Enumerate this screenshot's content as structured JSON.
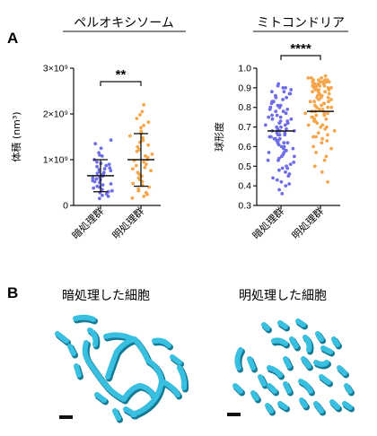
{
  "figure": {
    "panel_a_label": "A",
    "panel_b_label": "B",
    "colors": {
      "dark": "#6f6ee6",
      "light": "#f5a54a",
      "mito": "#39bfe0",
      "mito_shadow": "#157a95"
    },
    "dark_cell_title": "暗処理した細胞",
    "light_cell_title": "明処理した細胞"
  },
  "chart_data": [
    {
      "type": "scatter",
      "title": "ペルオキシソーム",
      "ylabel": "体積 (nm³)",
      "y_tick_labels": [
        "0",
        "1×10⁹",
        "2×10⁹",
        "3×10⁹"
      ],
      "y_ticks": [
        0,
        1000000000,
        2000000000,
        3000000000
      ],
      "ylim": [
        0,
        3000000000
      ],
      "categories": [
        "暗処理群",
        "明処理群"
      ],
      "significance": "**",
      "series": [
        {
          "color": "#6f6ee6",
          "mean": 650000000,
          "sd_low": 300000000,
          "sd_high": 1000000000,
          "values": [
            1430000000,
            1350000000,
            1250000000,
            1150000000,
            1100000000,
            1080000000,
            1000000000,
            950000000,
            920000000,
            900000000,
            870000000,
            850000000,
            820000000,
            800000000,
            780000000,
            760000000,
            740000000,
            720000000,
            700000000,
            680000000,
            660000000,
            640000000,
            620000000,
            600000000,
            580000000,
            560000000,
            540000000,
            520000000,
            500000000,
            470000000,
            450000000,
            420000000,
            400000000,
            380000000,
            350000000,
            320000000,
            300000000,
            280000000,
            250000000,
            220000000,
            200000000,
            150000000
          ]
        },
        {
          "color": "#f5a54a",
          "mean": 1000000000,
          "sd_low": 420000000,
          "sd_high": 1570000000,
          "values": [
            2200000000,
            2050000000,
            1980000000,
            1900000000,
            1820000000,
            1750000000,
            1700000000,
            1620000000,
            1570000000,
            1520000000,
            1480000000,
            1420000000,
            1380000000,
            1320000000,
            1280000000,
            1220000000,
            1180000000,
            1120000000,
            1080000000,
            1050000000,
            1000000000,
            980000000,
            950000000,
            900000000,
            870000000,
            830000000,
            800000000,
            760000000,
            720000000,
            680000000,
            640000000,
            600000000,
            560000000,
            520000000,
            480000000,
            440000000,
            400000000,
            360000000,
            320000000,
            280000000,
            240000000,
            200000000,
            160000000
          ]
        }
      ]
    },
    {
      "type": "scatter",
      "title": "ミトコンドリア",
      "ylabel": "球形度",
      "y_tick_labels": [
        "0.3",
        "0.4",
        "0.5",
        "0.6",
        "0.7",
        "0.8",
        "0.9",
        "1.0"
      ],
      "y_ticks": [
        0.3,
        0.4,
        0.5,
        0.6,
        0.7,
        0.8,
        0.9,
        1.0
      ],
      "ylim": [
        0.3,
        1.0
      ],
      "categories": [
        "暗処理群",
        "明処理群"
      ],
      "significance": "****",
      "series": [
        {
          "color": "#6f6ee6",
          "mean": 0.68,
          "values": [
            0.92,
            0.91,
            0.9,
            0.9,
            0.89,
            0.88,
            0.88,
            0.87,
            0.86,
            0.85,
            0.85,
            0.84,
            0.83,
            0.83,
            0.82,
            0.81,
            0.8,
            0.8,
            0.79,
            0.78,
            0.78,
            0.77,
            0.76,
            0.76,
            0.75,
            0.74,
            0.74,
            0.73,
            0.72,
            0.72,
            0.71,
            0.7,
            0.7,
            0.69,
            0.69,
            0.68,
            0.68,
            0.67,
            0.67,
            0.66,
            0.66,
            0.65,
            0.65,
            0.64,
            0.64,
            0.63,
            0.63,
            0.62,
            0.62,
            0.61,
            0.6,
            0.6,
            0.59,
            0.58,
            0.58,
            0.57,
            0.56,
            0.55,
            0.55,
            0.54,
            0.53,
            0.52,
            0.51,
            0.5,
            0.49,
            0.48,
            0.47,
            0.46,
            0.45,
            0.44,
            0.43,
            0.42,
            0.41,
            0.4,
            0.38,
            0.36,
            0.87,
            0.81,
            0.75,
            0.71,
            0.66,
            0.62,
            0.57,
            0.53,
            0.49,
            0.79,
            0.73,
            0.68,
            0.64,
            0.59
          ]
        },
        {
          "color": "#f5a54a",
          "mean": 0.78,
          "values": [
            0.96,
            0.95,
            0.95,
            0.95,
            0.94,
            0.94,
            0.94,
            0.93,
            0.93,
            0.93,
            0.93,
            0.92,
            0.92,
            0.92,
            0.91,
            0.91,
            0.91,
            0.9,
            0.9,
            0.9,
            0.89,
            0.89,
            0.88,
            0.88,
            0.87,
            0.87,
            0.86,
            0.86,
            0.85,
            0.85,
            0.84,
            0.84,
            0.83,
            0.83,
            0.82,
            0.82,
            0.81,
            0.81,
            0.8,
            0.8,
            0.79,
            0.79,
            0.78,
            0.78,
            0.77,
            0.77,
            0.76,
            0.76,
            0.75,
            0.75,
            0.74,
            0.73,
            0.73,
            0.72,
            0.71,
            0.71,
            0.7,
            0.69,
            0.68,
            0.67,
            0.66,
            0.65,
            0.64,
            0.63,
            0.62,
            0.6,
            0.59,
            0.57,
            0.55,
            0.53,
            0.5,
            0.47,
            0.42,
            0.94,
            0.92,
            0.9,
            0.88,
            0.86,
            0.83,
            0.8,
            0.77,
            0.74,
            0.7,
            0.65,
            0.93,
            0.91,
            0.89,
            0.85
          ]
        }
      ]
    }
  ]
}
